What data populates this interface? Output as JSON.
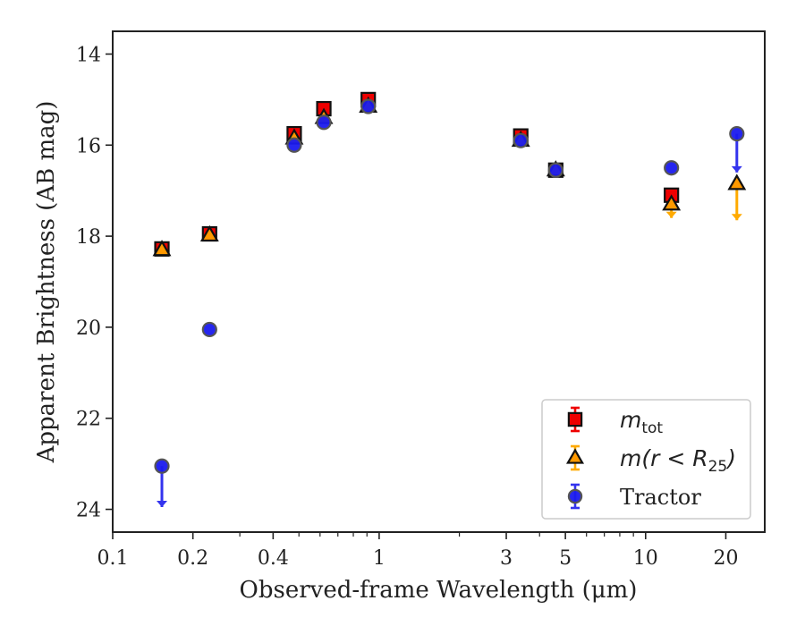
{
  "chart_data": {
    "type": "scatter",
    "xscale": "log",
    "yaxis_inverted": true,
    "xlim": [
      0.1,
      28
    ],
    "ylim": [
      24.5,
      13.5
    ],
    "xlabel": "Observed-frame Wavelength (μm)",
    "ylabel": "Apparent Brightness (AB mag)",
    "xticks": [
      {
        "value": 0.1,
        "label": "0.1"
      },
      {
        "value": 0.2,
        "label": "0.2"
      },
      {
        "value": 0.4,
        "label": "0.4"
      },
      {
        "value": 1,
        "label": "1"
      },
      {
        "value": 3,
        "label": "3"
      },
      {
        "value": 5,
        "label": "5"
      },
      {
        "value": 10,
        "label": "10"
      },
      {
        "value": 20,
        "label": "20"
      }
    ],
    "xminorticks": [
      0.3,
      0.5,
      0.6,
      0.7,
      0.8,
      0.9,
      2,
      4,
      6,
      7,
      8,
      9
    ],
    "yticks": [
      {
        "value": 14,
        "label": "14"
      },
      {
        "value": 16,
        "label": "16"
      },
      {
        "value": 18,
        "label": "18"
      },
      {
        "value": 20,
        "label": "20"
      },
      {
        "value": 22,
        "label": "22"
      },
      {
        "value": 24,
        "label": "24"
      }
    ],
    "legend_position": "lower right",
    "series": [
      {
        "key": "mtot",
        "name": "m_tot",
        "marker": "square",
        "color": "#ee0000",
        "errorColor": "#ee0000",
        "points": [
          {
            "x": 0.153,
            "y": 18.28
          },
          {
            "x": 0.231,
            "y": 17.95
          },
          {
            "x": 0.48,
            "y": 15.75
          },
          {
            "x": 0.62,
            "y": 15.2
          },
          {
            "x": 0.91,
            "y": 15.0
          },
          {
            "x": 3.4,
            "y": 15.8
          },
          {
            "x": 4.6,
            "y": 16.55
          },
          {
            "x": 12.5,
            "y": 17.1
          }
        ]
      },
      {
        "key": "mr25",
        "name": "m(r<R25)",
        "marker": "triangle",
        "color": "#ff9900",
        "errorColor": "#ffaa00",
        "points": [
          {
            "x": 0.153,
            "y": 18.3
          },
          {
            "x": 0.231,
            "y": 17.98
          },
          {
            "x": 0.48,
            "y": 15.85
          },
          {
            "x": 0.62,
            "y": 15.4
          },
          {
            "x": 0.91,
            "y": 15.15
          },
          {
            "x": 3.4,
            "y": 15.9
          },
          {
            "x": 4.6,
            "y": 16.55
          },
          {
            "x": 12.5,
            "y": 17.3,
            "err": 0.3,
            "limit": true
          },
          {
            "x": 22.0,
            "y": 16.85,
            "err": 0.8,
            "limit": true
          }
        ]
      },
      {
        "key": "tractor",
        "name": "Tractor",
        "marker": "circle",
        "color": "#1a1aee",
        "errorColor": "#3333ee",
        "points": [
          {
            "x": 0.153,
            "y": 23.05,
            "err": 0.9,
            "limit": true
          },
          {
            "x": 0.231,
            "y": 20.05
          },
          {
            "x": 0.48,
            "y": 16.0
          },
          {
            "x": 0.62,
            "y": 15.5
          },
          {
            "x": 0.91,
            "y": 15.15
          },
          {
            "x": 3.4,
            "y": 15.9
          },
          {
            "x": 4.6,
            "y": 16.55
          },
          {
            "x": 12.5,
            "y": 16.5
          },
          {
            "x": 22.0,
            "y": 15.75,
            "err": 0.85,
            "limit": true
          }
        ]
      }
    ],
    "legend": [
      {
        "key": "mtot",
        "base": "m",
        "sub": "tot",
        "italic": true
      },
      {
        "key": "mr25",
        "base": "m(r < R",
        "sub": "25",
        "tail": ")",
        "italic": true
      },
      {
        "key": "tractor",
        "label": "Tractor",
        "italic": false
      }
    ]
  }
}
